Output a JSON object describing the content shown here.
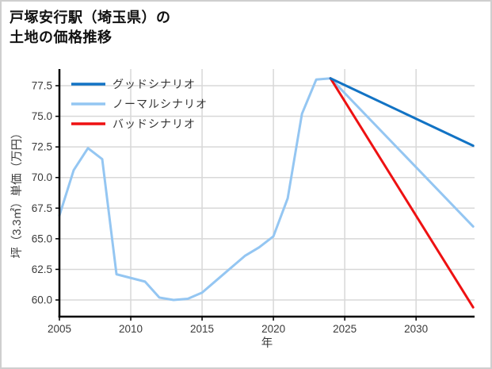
{
  "page": {
    "background_color": "#ffffff",
    "border_color": "#cfcfcf"
  },
  "title_lines": [
    "戸塚安行駅（埼玉県）の",
    "土地の価格推移"
  ],
  "chart_data": {
    "type": "line",
    "title": "戸塚安行駅（埼玉県）の土地の価格推移",
    "xlabel": "年",
    "ylabel": "坪（3.3㎡）単価（万円）",
    "xlim": [
      2005,
      2034.1
    ],
    "ylim": [
      58.64,
      78.86
    ],
    "grid": true,
    "grid_color": "#d8d8d8",
    "spine_color": "#000000",
    "tick_label_color": "#3a3a3a",
    "x_ticks": [
      2005,
      2010,
      2015,
      2020,
      2025,
      2030
    ],
    "x_tick_labels": [
      "2005",
      "2010",
      "2015",
      "2020",
      "2025",
      "2030"
    ],
    "y_ticks": [
      60.0,
      62.5,
      65.0,
      67.5,
      70.0,
      72.5,
      75.0,
      77.5
    ],
    "y_tick_labels": [
      "60.0",
      "62.5",
      "65.0",
      "67.5",
      "70.0",
      "72.5",
      "75.0",
      "77.5"
    ],
    "legend_position": "upper-left",
    "legend_text_color": "#333333",
    "series": [
      {
        "key": "good-scenario",
        "name": "グッドシナリオ",
        "color": "#1273c4",
        "role": "forecast",
        "x": [
          2024,
          2034
        ],
        "values": [
          78.1,
          72.6
        ]
      },
      {
        "key": "normal-scenario",
        "name": "ノーマルシナリオ",
        "color": "#94c6f2",
        "role": "history-and-forecast",
        "x": [
          2005,
          2006,
          2007,
          2008,
          2009,
          2010,
          2011,
          2012,
          2013,
          2014,
          2015,
          2016,
          2017,
          2018,
          2019,
          2020,
          2021,
          2022,
          2023,
          2024,
          2034
        ],
        "values": [
          66.9,
          70.6,
          72.4,
          71.5,
          62.1,
          61.8,
          61.5,
          60.2,
          60.0,
          60.1,
          60.6,
          61.6,
          62.6,
          63.6,
          64.3,
          65.2,
          68.3,
          75.2,
          78.0,
          78.1,
          66.0
        ]
      },
      {
        "key": "bad-scenario",
        "name": "バッドシナリオ",
        "color": "#ee1112",
        "role": "forecast",
        "x": [
          2024,
          2034
        ],
        "values": [
          78.1,
          59.4
        ]
      }
    ]
  }
}
